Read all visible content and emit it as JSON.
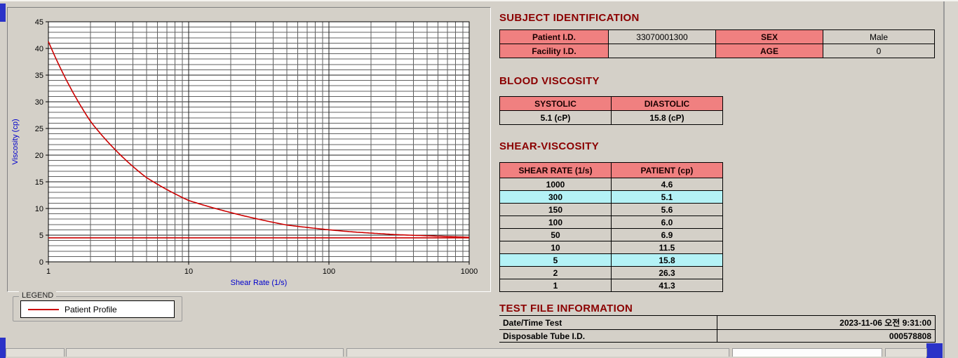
{
  "subject_identification": {
    "title": "SUBJECT IDENTIFICATION",
    "rows": [
      {
        "label1": "Patient I.D.",
        "value1": "33070001300",
        "label2": "SEX",
        "value2": "Male"
      },
      {
        "label1": "Facility I.D.",
        "value1": "",
        "label2": "AGE",
        "value2": "0"
      }
    ]
  },
  "blood_viscosity": {
    "title": "BLOOD VISCOSITY",
    "headers": [
      "SYSTOLIC",
      "DIASTOLIC"
    ],
    "values": [
      "5.1 (cP)",
      "15.8 (cP)"
    ]
  },
  "shear_viscosity": {
    "title": "SHEAR-VISCOSITY",
    "headers": [
      "SHEAR RATE (1/s)",
      "PATIENT (cp)"
    ],
    "rows": [
      {
        "rate": "1000",
        "value": "4.6",
        "highlight": false
      },
      {
        "rate": "300",
        "value": "5.1",
        "highlight": true
      },
      {
        "rate": "150",
        "value": "5.6",
        "highlight": false
      },
      {
        "rate": "100",
        "value": "6.0",
        "highlight": false
      },
      {
        "rate": "50",
        "value": "6.9",
        "highlight": false
      },
      {
        "rate": "10",
        "value": "11.5",
        "highlight": false
      },
      {
        "rate": "5",
        "value": "15.8",
        "highlight": true
      },
      {
        "rate": "2",
        "value": "26.3",
        "highlight": false
      },
      {
        "rate": "1",
        "value": "41.3",
        "highlight": false
      }
    ]
  },
  "test_file_information": {
    "title": "TEST FILE INFORMATION",
    "rows": [
      {
        "label": "Date/Time Test",
        "value": "2023-11-06  오전 9:31:00"
      },
      {
        "label": "Disposable Tube I.D.",
        "value": "000578808"
      }
    ]
  },
  "legend": {
    "group_label": "LEGEND",
    "series_label": "Patient Profile",
    "line_color": "#cc0000"
  },
  "colors": {
    "section_title": "#8b0000",
    "table_header_bg": "#f08080",
    "highlight_row_bg": "#b4f2f6",
    "window_bg": "#d4d0c8",
    "axis_label": "#0000cc"
  },
  "chart_data": {
    "type": "line",
    "title": "",
    "xlabel": "Shear Rate (1/s)",
    "ylabel": "Viscosity (cp)",
    "x_scale": "log",
    "xlim": [
      1,
      1000
    ],
    "ylim": [
      0,
      45
    ],
    "x_ticks": [
      1,
      10,
      100,
      1000
    ],
    "y_ticks": [
      0,
      5,
      10,
      15,
      20,
      25,
      30,
      35,
      40,
      45
    ],
    "grid": true,
    "legend_position": "below-left",
    "series": [
      {
        "name": "Patient Profile",
        "color": "#cc0000",
        "x": [
          1,
          2,
          5,
          10,
          50,
          100,
          150,
          300,
          1000
        ],
        "y": [
          41.3,
          26.3,
          15.8,
          11.5,
          6.9,
          6.0,
          5.6,
          5.1,
          4.6
        ]
      },
      {
        "name": "reference-line",
        "color": "#cc0000",
        "x": [
          1,
          1000
        ],
        "y": [
          4.5,
          4.5
        ]
      }
    ]
  }
}
